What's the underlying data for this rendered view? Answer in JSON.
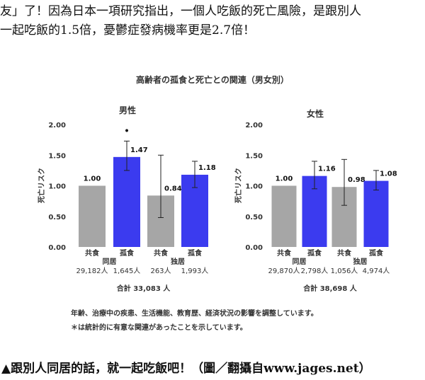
{
  "article": {
    "intro": [
      "友」了！因為日本一項研究指出，一個人吃飯的死亡風險，是跟別人",
      "一起吃飯的1.5倍，憂鬱症發病機率更是2.7倍！"
    ],
    "caption": "▲跟別人同居的話，就一起吃飯吧！（圖／翻攝自www.jages.net）"
  },
  "figure": {
    "title": "高齢者の孤食と死亡との関連（男女別）",
    "notes": [
      "年齢、治療中の疾患、生活機能、教育歴、経済状況の影響を調整しています。",
      "＊は統計的に有意な関連があったことを示しています。"
    ]
  },
  "chart_data": [
    {
      "type": "bar",
      "title": "男性",
      "y_label": "死亡リスク",
      "categories": [
        "共食",
        "孤食",
        "共食",
        "孤食"
      ],
      "groups": [
        "同居",
        "独居"
      ],
      "counts": [
        "29,182人",
        "1,645人",
        "263人",
        "1,993人"
      ],
      "total": "合計 33,083 人",
      "values": [
        1.0,
        1.47,
        0.84,
        1.18
      ],
      "value_labels": [
        "1.00",
        "1.47",
        "0.84",
        "1.18"
      ],
      "ci_low": [
        null,
        1.25,
        0.48,
        0.97
      ],
      "ci_high": [
        null,
        1.73,
        1.5,
        1.4
      ],
      "markers": [
        null,
        "•",
        null,
        null
      ],
      "colors": [
        "#a6a6a6",
        "#3b3bef",
        "#a6a6a6",
        "#3b3bef"
      ],
      "ylim": [
        0,
        2
      ],
      "yticks": [
        {
          "value": 0,
          "label": "0.00"
        },
        {
          "value": 0.5,
          "label": "0.50"
        },
        {
          "value": 1,
          "label": "1.00"
        },
        {
          "value": 1.5,
          "label": "1.50"
        },
        {
          "value": 2,
          "label": "2.00"
        }
      ],
      "grid": false
    },
    {
      "type": "bar",
      "title": "女性",
      "y_label": "死亡リスク",
      "categories": [
        "共食",
        "孤食",
        "共食",
        "孤食"
      ],
      "groups": [
        "同居",
        "独居"
      ],
      "counts": [
        "29,870人",
        "2,798人",
        "1,056人",
        "4,974人"
      ],
      "total": "合計 38,698 人",
      "values": [
        1.0,
        1.16,
        0.98,
        1.08
      ],
      "value_labels": [
        "1.00",
        "1.16",
        "0.98",
        "1.08"
      ],
      "ci_low": [
        null,
        0.95,
        0.68,
        0.93
      ],
      "ci_high": [
        null,
        1.4,
        1.43,
        1.25
      ],
      "markers": [
        null,
        null,
        null,
        null
      ],
      "colors": [
        "#a6a6a6",
        "#3b3bef",
        "#a6a6a6",
        "#3b3bef"
      ],
      "ylim": [
        0,
        2
      ],
      "yticks": [
        {
          "value": 0,
          "label": "0.00"
        },
        {
          "value": 0.5,
          "label": "0.50"
        },
        {
          "value": 1,
          "label": "1.00"
        },
        {
          "value": 1.5,
          "label": "1.50"
        },
        {
          "value": 2,
          "label": "2.00"
        }
      ],
      "grid": false
    }
  ]
}
